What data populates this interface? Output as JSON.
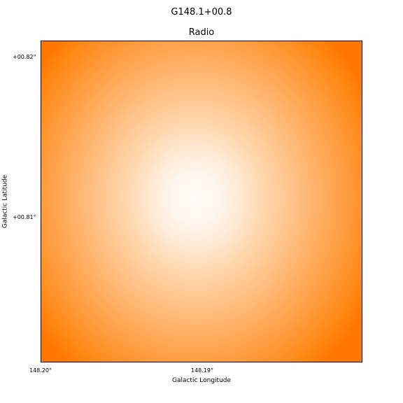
{
  "header": {
    "title": "G148.1+00.8",
    "subtitle": "Radio"
  },
  "image": {
    "colormap": {
      "center": "#fffcf8",
      "edge": "#ff7700"
    }
  },
  "axes": {
    "x_label": "Galactic Longitude",
    "y_label": "Galactic Latitude",
    "x_ticks": [
      "148.20°",
      "148.19°"
    ],
    "y_ticks": [
      "+00.82°",
      "+00.81°"
    ]
  }
}
